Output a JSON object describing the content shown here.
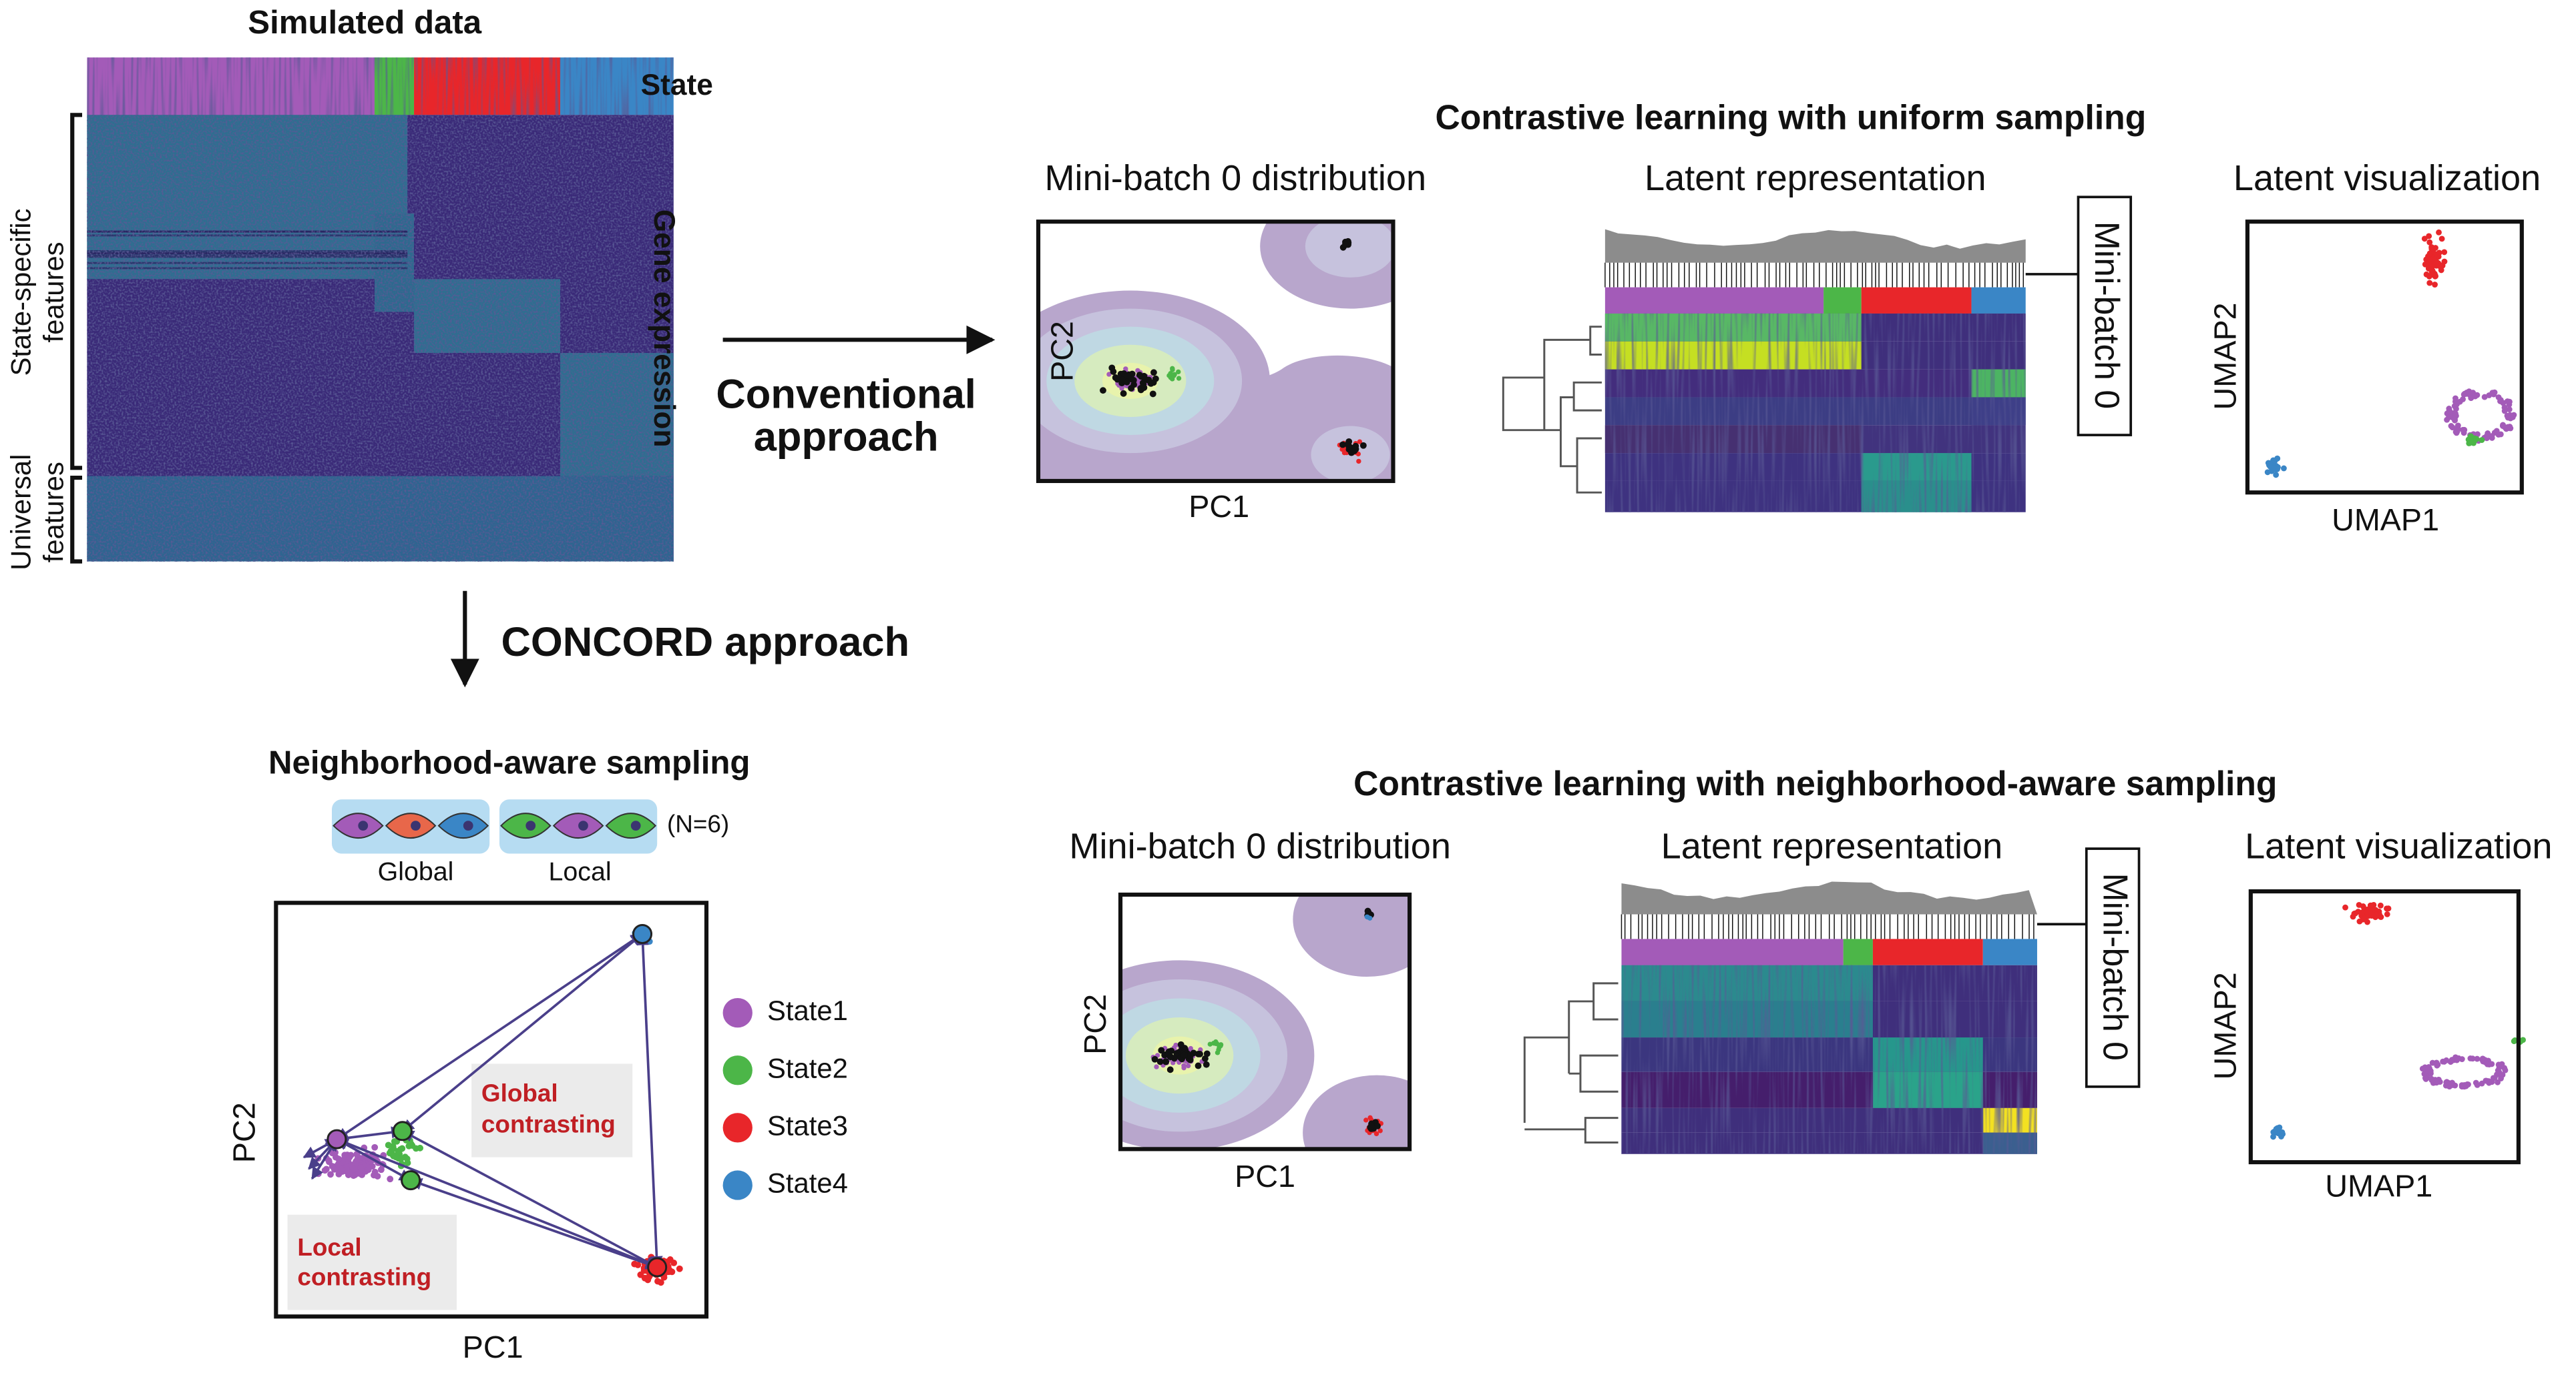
{
  "simulated": {
    "title": "Simulated data",
    "state_label": "State",
    "gene_label": "Gene expression",
    "state_specific": [
      "State-specific",
      "features"
    ],
    "universal": [
      "Universal",
      "features"
    ]
  },
  "conventional": [
    "Conventional",
    "approach"
  ],
  "concord": "CONCORD approach",
  "uniform": {
    "title": "Contrastive learning with uniform sampling",
    "distribution": {
      "title": "Mini-batch 0 distribution",
      "x_label": "PC1",
      "y_label": "PC2"
    },
    "latent": {
      "title": "Latent representation",
      "batch_label": "Mini-batch 0"
    },
    "visualization": {
      "title": "Latent visualization",
      "x_label": "UMAP1",
      "y_label": "UMAP2"
    }
  },
  "neighborhood": {
    "title": "Contrastive learning with neighborhood-aware sampling",
    "distribution": {
      "title": "Mini-batch 0 distribution",
      "x_label": "PC1",
      "y_label": "PC2"
    },
    "latent": {
      "title": "Latent representation",
      "batch_label": "Mini-batch 0"
    },
    "visualization": {
      "title": "Latent visualization",
      "x_label": "UMAP1",
      "y_label": "UMAP2"
    }
  },
  "sampling": {
    "title": "Neighborhood-aware sampling",
    "global": "Global",
    "local": "Local",
    "n": "(N=6)",
    "x_label": "PC1",
    "y_label": "PC2",
    "global_contrasting": [
      "Global",
      "contrasting"
    ],
    "local_contrasting": [
      "Local",
      "contrasting"
    ],
    "legend": [
      {
        "name": "State1",
        "color": "#a35bb8"
      },
      {
        "name": "State2",
        "color": "#4cb648"
      },
      {
        "name": "State3",
        "color": "#e8262a"
      },
      {
        "name": "State4",
        "color": "#3a86c6"
      }
    ]
  }
}
